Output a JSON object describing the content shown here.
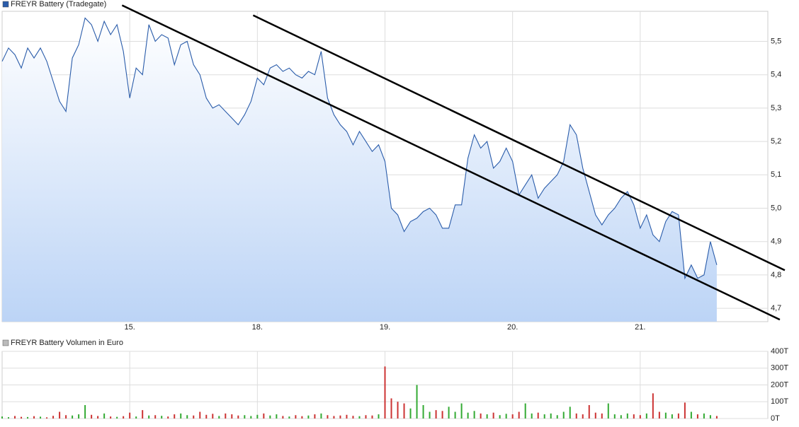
{
  "chart_data": [
    {
      "type": "line",
      "series": [
        {
          "name": "FREYR Battery (Tradegate)",
          "color": "#2a5caa",
          "values": [
            5.44,
            5.48,
            5.46,
            5.42,
            5.48,
            5.45,
            5.48,
            5.44,
            5.38,
            5.32,
            5.29,
            5.45,
            5.49,
            5.57,
            5.55,
            5.5,
            5.56,
            5.52,
            5.55,
            5.47,
            5.33,
            5.42,
            5.4,
            5.55,
            5.5,
            5.52,
            5.51,
            5.43,
            5.49,
            5.5,
            5.43,
            5.4,
            5.33,
            5.3,
            5.31,
            5.29,
            5.27,
            5.25,
            5.28,
            5.32,
            5.39,
            5.37,
            5.42,
            5.43,
            5.41,
            5.42,
            5.4,
            5.39,
            5.41,
            5.4,
            5.47,
            5.33,
            5.28,
            5.25,
            5.23,
            5.19,
            5.23,
            5.2,
            5.17,
            5.19,
            5.14,
            5.0,
            4.98,
            4.93,
            4.96,
            4.97,
            4.99,
            5.0,
            4.98,
            4.94,
            4.94,
            5.01,
            5.01,
            5.15,
            5.22,
            5.18,
            5.2,
            5.12,
            5.14,
            5.18,
            5.14,
            5.04,
            5.07,
            5.1,
            5.03,
            5.06,
            5.08,
            5.1,
            5.14,
            5.25,
            5.22,
            5.12,
            5.05,
            4.98,
            4.95,
            4.98,
            5.0,
            5.03,
            5.05,
            5.01,
            4.94,
            4.98,
            4.92,
            4.9,
            4.96,
            4.99,
            4.98,
            4.79,
            4.83,
            4.79,
            4.8,
            4.9,
            4.83
          ]
        }
      ],
      "x": [
        0,
        0.05,
        0.1,
        0.15,
        0.2,
        0.25,
        0.3,
        0.35,
        0.4,
        0.45,
        0.5,
        0.55,
        0.6,
        0.65,
        0.7,
        0.75,
        0.8,
        0.85,
        0.9,
        0.95,
        1,
        1.05,
        1.1,
        1.15,
        1.2,
        1.25,
        1.3,
        1.35,
        1.4,
        1.45,
        1.5,
        1.55,
        1.6,
        1.65,
        1.7,
        1.75,
        1.8,
        1.85,
        1.9,
        1.95,
        2,
        2.05,
        2.1,
        2.15,
        2.2,
        2.25,
        2.3,
        2.35,
        2.4,
        2.45,
        2.5,
        2.55,
        2.6,
        2.65,
        2.7,
        2.75,
        2.8,
        2.85,
        2.9,
        2.95,
        3,
        3.05,
        3.1,
        3.15,
        3.2,
        3.25,
        3.3,
        3.35,
        3.4,
        3.45,
        3.5,
        3.55,
        3.6,
        3.65,
        3.7,
        3.75,
        3.8,
        3.85,
        3.9,
        3.95,
        4,
        4.05,
        4.1,
        4.15,
        4.2,
        4.25,
        4.3,
        4.35,
        4.4,
        4.45,
        4.5,
        4.55,
        4.6,
        4.65,
        4.7,
        4.75,
        4.8,
        4.85,
        4.9,
        4.95,
        5,
        5.05,
        5.1,
        5.15,
        5.2,
        5.25,
        5.3,
        5.35,
        5.4,
        5.45,
        5.5,
        5.55,
        5.6
      ],
      "xlim": [
        0,
        6
      ],
      "xticks": [
        {
          "value": 1,
          "label": "15."
        },
        {
          "value": 2,
          "label": "18."
        },
        {
          "value": 3,
          "label": "19."
        },
        {
          "value": 4,
          "label": "20."
        },
        {
          "value": 5,
          "label": "21."
        }
      ],
      "ylim": [
        4.66,
        5.59
      ],
      "yticks": [
        {
          "value": 4.7,
          "label": "4,7"
        },
        {
          "value": 4.8,
          "label": "4,8"
        },
        {
          "value": 4.9,
          "label": "4,9"
        },
        {
          "value": 5.0,
          "label": "5,0"
        },
        {
          "value": 5.1,
          "label": "5,1"
        },
        {
          "value": 5.2,
          "label": "5,2"
        },
        {
          "value": 5.3,
          "label": "5,3"
        },
        {
          "value": 5.4,
          "label": "5,4"
        },
        {
          "value": 5.5,
          "label": "5,5"
        }
      ],
      "grid": true,
      "area": true,
      "trend_lines": [
        {
          "color": "#000000",
          "x": [
            0.94,
            6.094
          ],
          "y": [
            5.608,
            4.666
          ]
        },
        {
          "color": "#000000",
          "x": [
            1.967,
            6.133
          ],
          "y": [
            5.578,
            4.814
          ]
        }
      ]
    },
    {
      "type": "bar",
      "series": [
        {
          "name": "FREYR Battery Volumen in Euro",
          "color": "#bbbbbb",
          "values": [
            12000,
            8000,
            15000,
            10000,
            9000,
            14000,
            11000,
            7000,
            16000,
            40000,
            20000,
            18000,
            25000,
            80000,
            22000,
            15000,
            30000,
            12000,
            10000,
            14000,
            35000,
            12000,
            50000,
            18000,
            20000,
            16000,
            12000,
            25000,
            30000,
            20000,
            18000,
            40000,
            22000,
            28000,
            15000,
            30000,
            25000,
            18000,
            20000,
            15000,
            22000,
            30000,
            18000,
            25000,
            15000,
            12000,
            20000,
            14000,
            18000,
            25000,
            30000,
            20000,
            15000,
            18000,
            22000,
            16000,
            14000,
            20000,
            18000,
            25000,
            310000,
            120000,
            100000,
            90000,
            60000,
            200000,
            80000,
            40000,
            50000,
            45000,
            70000,
            40000,
            90000,
            35000,
            45000,
            30000,
            25000,
            35000,
            20000,
            28000,
            25000,
            40000,
            90000,
            30000,
            35000,
            25000,
            30000,
            20000,
            40000,
            70000,
            30000,
            25000,
            80000,
            35000,
            30000,
            90000,
            25000,
            20000,
            30000,
            25000,
            20000,
            30000,
            150000,
            40000,
            35000,
            25000,
            30000,
            95000,
            40000,
            25000,
            30000,
            20000,
            15000
          ]
        }
      ],
      "bar_colors": [
        "#33aa33",
        "#33aa33",
        "#cc3333",
        "#cc3333",
        "#33aa33",
        "#cc3333",
        "#33aa33",
        "#cc3333",
        "#cc3333",
        "#cc3333",
        "#cc3333",
        "#33aa33",
        "#33aa33",
        "#33aa33",
        "#cc3333",
        "#cc3333",
        "#33aa33",
        "#cc3333",
        "#33aa33",
        "#cc3333",
        "#cc3333",
        "#33aa33",
        "#cc3333",
        "#33aa33",
        "#cc3333",
        "#33aa33",
        "#cc3333",
        "#cc3333",
        "#33aa33",
        "#33aa33",
        "#cc3333",
        "#cc3333",
        "#cc3333",
        "#cc3333",
        "#33aa33",
        "#cc3333",
        "#cc3333",
        "#cc3333",
        "#33aa33",
        "#33aa33",
        "#33aa33",
        "#cc3333",
        "#33aa33",
        "#33aa33",
        "#cc3333",
        "#33aa33",
        "#cc3333",
        "#cc3333",
        "#33aa33",
        "#cc3333",
        "#33aa33",
        "#cc3333",
        "#cc3333",
        "#cc3333",
        "#cc3333",
        "#cc3333",
        "#33aa33",
        "#cc3333",
        "#cc3333",
        "#33aa33",
        "#cc3333",
        "#cc3333",
        "#cc3333",
        "#cc3333",
        "#33aa33",
        "#33aa33",
        "#33aa33",
        "#33aa33",
        "#cc3333",
        "#cc3333",
        "#33aa33",
        "#33aa33",
        "#33aa33",
        "#33aa33",
        "#33aa33",
        "#cc3333",
        "#33aa33",
        "#cc3333",
        "#33aa33",
        "#33aa33",
        "#cc3333",
        "#cc3333",
        "#33aa33",
        "#33aa33",
        "#cc3333",
        "#33aa33",
        "#33aa33",
        "#33aa33",
        "#33aa33",
        "#33aa33",
        "#cc3333",
        "#cc3333",
        "#cc3333",
        "#cc3333",
        "#cc3333",
        "#33aa33",
        "#33aa33",
        "#33aa33",
        "#33aa33",
        "#cc3333",
        "#cc3333",
        "#33aa33",
        "#cc3333",
        "#cc3333",
        "#33aa33",
        "#33aa33",
        "#cc3333",
        "#cc3333",
        "#33aa33",
        "#cc3333",
        "#33aa33",
        "#33aa33",
        "#cc3333"
      ],
      "x": [
        0,
        0.05,
        0.1,
        0.15,
        0.2,
        0.25,
        0.3,
        0.35,
        0.4,
        0.45,
        0.5,
        0.55,
        0.6,
        0.65,
        0.7,
        0.75,
        0.8,
        0.85,
        0.9,
        0.95,
        1,
        1.05,
        1.1,
        1.15,
        1.2,
        1.25,
        1.3,
        1.35,
        1.4,
        1.45,
        1.5,
        1.55,
        1.6,
        1.65,
        1.7,
        1.75,
        1.8,
        1.85,
        1.9,
        1.95,
        2,
        2.05,
        2.1,
        2.15,
        2.2,
        2.25,
        2.3,
        2.35,
        2.4,
        2.45,
        2.5,
        2.55,
        2.6,
        2.65,
        2.7,
        2.75,
        2.8,
        2.85,
        2.9,
        2.95,
        3,
        3.05,
        3.1,
        3.15,
        3.2,
        3.25,
        3.3,
        3.35,
        3.4,
        3.45,
        3.5,
        3.55,
        3.6,
        3.65,
        3.7,
        3.75,
        3.8,
        3.85,
        3.9,
        3.95,
        4,
        4.05,
        4.1,
        4.15,
        4.2,
        4.25,
        4.3,
        4.35,
        4.4,
        4.45,
        4.5,
        4.55,
        4.6,
        4.65,
        4.7,
        4.75,
        4.8,
        4.85,
        4.9,
        4.95,
        5,
        5.05,
        5.1,
        5.15,
        5.2,
        5.25,
        5.3,
        5.35,
        5.4,
        5.45,
        5.5,
        5.55,
        5.6
      ],
      "xlim": [
        0,
        6
      ],
      "ylim": [
        0,
        400000
      ],
      "yticks": [
        {
          "value": 0,
          "label": "0T"
        },
        {
          "value": 100000,
          "label": "100T"
        },
        {
          "value": 200000,
          "label": "200T"
        },
        {
          "value": 300000,
          "label": "300T"
        },
        {
          "value": 400000,
          "label": "400T"
        }
      ],
      "grid": true
    }
  ]
}
